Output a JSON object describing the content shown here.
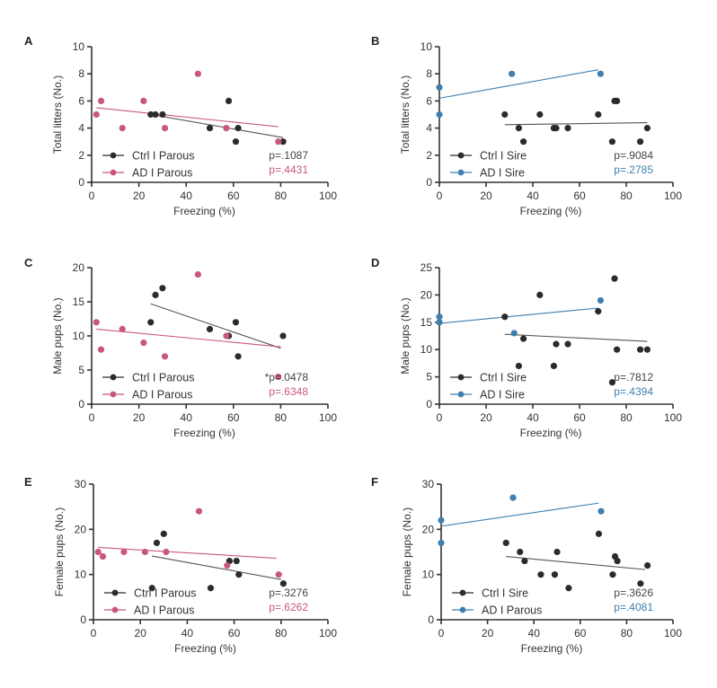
{
  "colors": {
    "ctrl": "#2b2b2b",
    "ad_parous": "#c8587a",
    "ad_sire": "#3f7fb0",
    "ctrl_line": "#555555"
  },
  "chart_data": [
    {
      "panel": "A",
      "type": "scatter",
      "xlabel": "Freezing (%)",
      "ylabel": "Total litters (No.)",
      "xlim": [
        0,
        100
      ],
      "ylim": [
        0,
        10
      ],
      "xticks": [
        0,
        20,
        40,
        60,
        80,
        100
      ],
      "yticks": [
        0,
        2,
        4,
        6,
        8,
        10
      ],
      "legend_position": "bottom-left",
      "series": [
        {
          "name": "Ctrl I Parous",
          "color_key": "ctrl",
          "points": [
            [
              25,
              5
            ],
            [
              27,
              5
            ],
            [
              30,
              5
            ],
            [
              50,
              4
            ],
            [
              58,
              6
            ],
            [
              61,
              3
            ],
            [
              62,
              4
            ],
            [
              81,
              3
            ]
          ],
          "fit": [
            [
              25,
              5.0
            ],
            [
              81,
              3.3
            ]
          ],
          "pvalue": "p=.1087"
        },
        {
          "name": "AD I Parous",
          "color_key": "ad_parous",
          "points": [
            [
              2,
              5
            ],
            [
              4,
              6
            ],
            [
              13,
              4
            ],
            [
              22,
              6
            ],
            [
              31,
              4
            ],
            [
              45,
              8
            ],
            [
              57,
              4
            ],
            [
              79,
              3
            ]
          ],
          "fit": [
            [
              2,
              5.5
            ],
            [
              79,
              4.1
            ]
          ],
          "pvalue": "p=.4431"
        }
      ]
    },
    {
      "panel": "B",
      "type": "scatter",
      "xlabel": "Freezing (%)",
      "ylabel": "Total litters (No.)",
      "xlim": [
        0,
        100
      ],
      "ylim": [
        0,
        10
      ],
      "xticks": [
        0,
        20,
        40,
        60,
        80,
        100
      ],
      "yticks": [
        0,
        2,
        4,
        6,
        8,
        10
      ],
      "legend_position": "bottom-left",
      "series": [
        {
          "name": "Ctrl I Sire",
          "color_key": "ctrl",
          "points": [
            [
              28,
              5
            ],
            [
              34,
              4
            ],
            [
              36,
              3
            ],
            [
              43,
              5
            ],
            [
              49,
              4
            ],
            [
              50,
              4
            ],
            [
              55,
              4
            ],
            [
              68,
              5
            ],
            [
              74,
              3
            ],
            [
              75,
              6
            ],
            [
              76,
              6
            ],
            [
              86,
              3
            ],
            [
              89,
              4
            ]
          ],
          "fit": [
            [
              28,
              4.25
            ],
            [
              89,
              4.4
            ]
          ],
          "pvalue": "p=.9084"
        },
        {
          "name": "AD I Sire",
          "color_key": "ad_sire",
          "points": [
            [
              0,
              7
            ],
            [
              0,
              5
            ],
            [
              31,
              8
            ],
            [
              69,
              8
            ]
          ],
          "fit": [
            [
              0,
              6.2
            ],
            [
              68,
              8.3
            ]
          ],
          "pvalue": "p=.2785"
        }
      ]
    },
    {
      "panel": "C",
      "type": "scatter",
      "xlabel": "Freezing (%)",
      "ylabel": "Male pups (No.)",
      "xlim": [
        0,
        100
      ],
      "ylim": [
        0,
        20
      ],
      "xticks": [
        0,
        20,
        40,
        60,
        80,
        100
      ],
      "yticks": [
        0,
        5,
        10,
        15,
        20
      ],
      "legend_position": "bottom-left",
      "series": [
        {
          "name": "Ctrl I Parous",
          "color_key": "ctrl",
          "points": [
            [
              25,
              12
            ],
            [
              27,
              16
            ],
            [
              30,
              17
            ],
            [
              50,
              11
            ],
            [
              58,
              10
            ],
            [
              61,
              12
            ],
            [
              62,
              7
            ],
            [
              81,
              10
            ]
          ],
          "fit": [
            [
              25,
              14.7
            ],
            [
              80,
              8.2
            ]
          ],
          "pvalue": "*p=.0478"
        },
        {
          "name": "AD I Parous",
          "color_key": "ad_parous",
          "points": [
            [
              2,
              12
            ],
            [
              4,
              8
            ],
            [
              13,
              11
            ],
            [
              22,
              9
            ],
            [
              31,
              7
            ],
            [
              45,
              19
            ],
            [
              57,
              10
            ],
            [
              79,
              4
            ]
          ],
          "fit": [
            [
              2,
              11.0
            ],
            [
              80,
              8.4
            ]
          ],
          "pvalue": "p=.6348"
        }
      ]
    },
    {
      "panel": "D",
      "type": "scatter",
      "xlabel": "Freezing (%)",
      "ylabel": "Male pups (No.)",
      "xlim": [
        0,
        100
      ],
      "ylim": [
        0,
        25
      ],
      "xticks": [
        0,
        20,
        40,
        60,
        80,
        100
      ],
      "yticks": [
        0,
        5,
        10,
        15,
        20,
        25
      ],
      "legend_position": "bottom-left",
      "series": [
        {
          "name": "Ctrl I Sire",
          "color_key": "ctrl",
          "points": [
            [
              28,
              16
            ],
            [
              34,
              7
            ],
            [
              36,
              12
            ],
            [
              43,
              20
            ],
            [
              49,
              7
            ],
            [
              50,
              11
            ],
            [
              55,
              11
            ],
            [
              68,
              17
            ],
            [
              74,
              4
            ],
            [
              75,
              23
            ],
            [
              76,
              10
            ],
            [
              86,
              10
            ],
            [
              89,
              10
            ]
          ],
          "fit": [
            [
              28,
              12.8
            ],
            [
              89,
              11.5
            ]
          ],
          "pvalue": "p=.7812"
        },
        {
          "name": "AD I Sire",
          "color_key": "ad_sire",
          "points": [
            [
              0,
              16
            ],
            [
              0,
              15
            ],
            [
              32,
              13
            ],
            [
              69,
              19
            ]
          ],
          "fit": [
            [
              0,
              14.8
            ],
            [
              68,
              17.6
            ]
          ],
          "pvalue": "p=.4394"
        }
      ]
    },
    {
      "panel": "E",
      "type": "scatter",
      "xlabel": "Freezing (%)",
      "ylabel": "Female pups (No.)",
      "xlim": [
        0,
        100
      ],
      "ylim": [
        0,
        30
      ],
      "xticks": [
        0,
        20,
        40,
        60,
        80,
        100
      ],
      "yticks": [
        0,
        10,
        20,
        30
      ],
      "legend_position": "bottom-left",
      "series": [
        {
          "name": "Ctrl I Parous",
          "color_key": "ctrl",
          "points": [
            [
              25,
              7
            ],
            [
              27,
              17
            ],
            [
              30,
              19
            ],
            [
              50,
              7
            ],
            [
              58,
              13
            ],
            [
              61,
              13
            ],
            [
              62,
              10
            ],
            [
              81,
              8
            ]
          ],
          "fit": [
            [
              25,
              14.1
            ],
            [
              80,
              8.9
            ]
          ],
          "pvalue": "p=.3276"
        },
        {
          "name": "AD I Parous",
          "color_key": "ad_parous",
          "points": [
            [
              2,
              15
            ],
            [
              4,
              14
            ],
            [
              13,
              15
            ],
            [
              22,
              15
            ],
            [
              31,
              15
            ],
            [
              45,
              24
            ],
            [
              57,
              12
            ],
            [
              79,
              10
            ]
          ],
          "fit": [
            [
              2,
              16.0
            ],
            [
              78,
              13.6
            ]
          ],
          "pvalue": "p=.6262"
        }
      ]
    },
    {
      "panel": "F",
      "type": "scatter",
      "xlabel": "Freezing (%)",
      "ylabel": "Female pups (No.)",
      "xlim": [
        0,
        100
      ],
      "ylim": [
        0,
        30
      ],
      "xticks": [
        0,
        20,
        40,
        60,
        80,
        100
      ],
      "yticks": [
        0,
        10,
        20,
        30
      ],
      "legend_position": "bottom-left",
      "series": [
        {
          "name": "Ctrl I Sire",
          "color_key": "ctrl",
          "points": [
            [
              28,
              17
            ],
            [
              34,
              15
            ],
            [
              36,
              13
            ],
            [
              43,
              10
            ],
            [
              49,
              10
            ],
            [
              50,
              15
            ],
            [
              55,
              7
            ],
            [
              68,
              19
            ],
            [
              74,
              10
            ],
            [
              75,
              14
            ],
            [
              76,
              13
            ],
            [
              86,
              8
            ],
            [
              89,
              12
            ]
          ],
          "fit": [
            [
              28,
              14.0
            ],
            [
              88,
              11.1
            ]
          ],
          "pvalue": "p=.3626"
        },
        {
          "name": "AD I Parous",
          "color_key": "ad_sire",
          "points": [
            [
              0,
              22
            ],
            [
              0,
              17
            ],
            [
              31,
              27
            ],
            [
              69,
              24
            ]
          ],
          "fit": [
            [
              0,
              20.7
            ],
            [
              68,
              25.8
            ]
          ],
          "pvalue": "p=.4081"
        }
      ]
    }
  ]
}
